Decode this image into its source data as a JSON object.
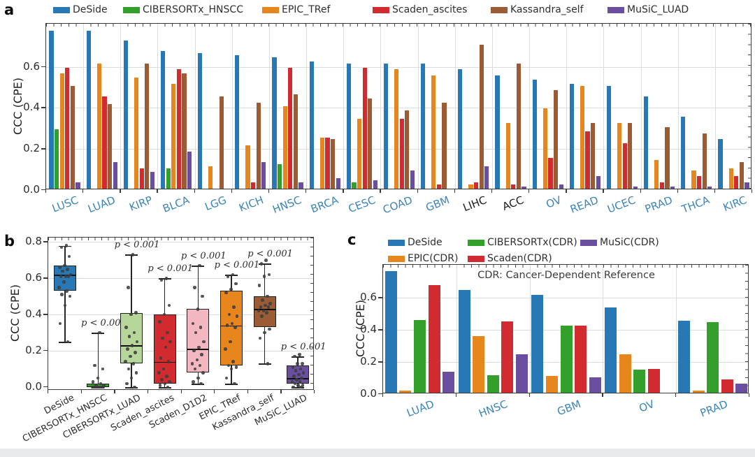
{
  "palette": {
    "blue": "#2878b5",
    "green": "#33a02c",
    "orange": "#e8861e",
    "red": "#d22b2f",
    "brown": "#9b5b35",
    "purple": "#6a4fa0",
    "pink": "#f3b7c1",
    "lightgreen": "#b7d79a",
    "axis": "#3a3a3a",
    "grid": "#dbdee1",
    "cancer_blue": "#3d85b8",
    "black_label": "#1c1c1c"
  },
  "chart_data": [
    {
      "panel": "a",
      "type": "bar",
      "ylabel": "CCC (CPE)",
      "yticks": [
        "0.0",
        "0.2",
        "0.4",
        "0.6"
      ],
      "ytick_values": [
        0,
        0.2,
        0.4,
        0.6
      ],
      "ylim": [
        0,
        0.81
      ],
      "legend": [
        {
          "label": "DeSide",
          "color_key": "blue"
        },
        {
          "label": "CIBERSORTx_HNSCC",
          "color_key": "green"
        },
        {
          "label": "EPIC_TRef",
          "color_key": "orange"
        },
        {
          "label": "Scaden_ascites",
          "color_key": "red"
        },
        {
          "label": "Kassandra_self",
          "color_key": "brown"
        },
        {
          "label": "MuSiC_LUAD",
          "color_key": "purple"
        }
      ],
      "categories": [
        "LUSC",
        "LUAD",
        "KIRP",
        "BLCA",
        "LGG",
        "KICH",
        "HNSC",
        "BRCA",
        "CESC",
        "COAD",
        "GBM",
        "LIHC",
        "ACC",
        "OV",
        "READ",
        "UCEC",
        "PRAD",
        "THCA",
        "KIRC"
      ],
      "black_categories": [
        "LIHC",
        "ACC"
      ],
      "series": [
        {
          "name": "DeSide",
          "color_key": "blue",
          "values": [
            0.77,
            0.77,
            0.72,
            0.67,
            0.66,
            0.65,
            0.64,
            0.62,
            0.61,
            0.61,
            0.61,
            0.58,
            0.55,
            0.53,
            0.51,
            0.5,
            0.45,
            0.35,
            0.24
          ]
        },
        {
          "name": "CIBERSORTx_HNSCC",
          "color_key": "green",
          "values": [
            0.29,
            0,
            0,
            0.1,
            0,
            0,
            0.12,
            0,
            0.03,
            0,
            0,
            0,
            0,
            0,
            0,
            0,
            0,
            0,
            0
          ]
        },
        {
          "name": "EPIC_TRef",
          "color_key": "orange",
          "values": [
            0.56,
            0.61,
            0.54,
            0.51,
            0.11,
            0.21,
            0.4,
            0.25,
            0.34,
            0.58,
            0.55,
            0.02,
            0.32,
            0.39,
            0.5,
            0.32,
            0.14,
            0.09,
            0.1
          ]
        },
        {
          "name": "Scaden_ascites",
          "color_key": "red",
          "values": [
            0.59,
            0.45,
            0.1,
            0.58,
            0,
            0.03,
            0.59,
            0.25,
            0.59,
            0.34,
            0.02,
            0.03,
            0.02,
            0.15,
            0.28,
            0.22,
            0.03,
            0.06,
            0.06
          ]
        },
        {
          "name": "Kassandra_self",
          "color_key": "brown",
          "values": [
            0.5,
            0.41,
            0.61,
            0.56,
            0.45,
            0.42,
            0.46,
            0.24,
            0.44,
            0.38,
            0.42,
            0.7,
            0.61,
            0.48,
            0.32,
            0.32,
            0.3,
            0.27,
            0.13
          ]
        },
        {
          "name": "MuSiC_LUAD",
          "color_key": "purple",
          "values": [
            0.03,
            0.13,
            0.08,
            0.18,
            0,
            0.13,
            0.03,
            0.05,
            0.04,
            0.09,
            0,
            0.11,
            0.01,
            0.02,
            0.06,
            0.01,
            0.01,
            0.01,
            0.03
          ]
        }
      ]
    },
    {
      "panel": "b",
      "type": "box",
      "ylabel": "CCC (CPE)",
      "yticks": [
        "0.0",
        "0.2",
        "0.4",
        "0.6",
        "0.8"
      ],
      "ytick_values": [
        0,
        0.2,
        0.4,
        0.6,
        0.8
      ],
      "ylim": [
        -0.02,
        0.82
      ],
      "significance_label": "p < 0.001",
      "boxes": [
        {
          "name": "DeSide",
          "color_key": "blue",
          "low": 0.25,
          "q1": 0.53,
          "median": 0.62,
          "q3": 0.67,
          "high": 0.78,
          "p": false,
          "points": [
            0.78,
            0.77,
            0.72,
            0.67,
            0.66,
            0.65,
            0.64,
            0.62,
            0.61,
            0.61,
            0.61,
            0.58,
            0.55,
            0.53,
            0.51,
            0.5,
            0.45,
            0.35,
            0.25
          ]
        },
        {
          "name": "CIBERSORTx_HNSCC",
          "color_key": "green",
          "low": 0.0,
          "q1": 0.0,
          "median": 0.005,
          "q3": 0.02,
          "high": 0.3,
          "p": true,
          "points": [
            0.3,
            0.12,
            0.1,
            0.05,
            0.03,
            0.02,
            0.01,
            0.01,
            0,
            0,
            0,
            0,
            0,
            0,
            0,
            0,
            0,
            0,
            0
          ]
        },
        {
          "name": "CIBERSORTx_LUAD",
          "color_key": "lightgreen",
          "low": 0.0,
          "q1": 0.13,
          "median": 0.23,
          "q3": 0.41,
          "high": 0.73,
          "p": true,
          "points": [
            0.73,
            0.55,
            0.41,
            0.4,
            0.33,
            0.3,
            0.28,
            0.25,
            0.23,
            0.21,
            0.19,
            0.17,
            0.14,
            0.13,
            0.1,
            0.08,
            0.05,
            0.02,
            0
          ]
        },
        {
          "name": "Scaden_ascites",
          "color_key": "red",
          "low": 0.0,
          "q1": 0.02,
          "median": 0.14,
          "q3": 0.4,
          "high": 0.6,
          "p": true,
          "points": [
            0.6,
            0.59,
            0.45,
            0.4,
            0.36,
            0.3,
            0.27,
            0.25,
            0.22,
            0.16,
            0.14,
            0.1,
            0.08,
            0.06,
            0.04,
            0.03,
            0.02,
            0.01,
            0
          ]
        },
        {
          "name": "Scaden_D1D2",
          "color_key": "pink",
          "low": 0.02,
          "q1": 0.08,
          "median": 0.21,
          "q3": 0.43,
          "high": 0.67,
          "p": true,
          "points": [
            0.67,
            0.55,
            0.5,
            0.43,
            0.35,
            0.33,
            0.3,
            0.25,
            0.22,
            0.2,
            0.18,
            0.15,
            0.13,
            0.12,
            0.1,
            0.08,
            0.05,
            0.03,
            0.02
          ]
        },
        {
          "name": "EPIC_TRef",
          "color_key": "orange",
          "low": 0.02,
          "q1": 0.12,
          "median": 0.34,
          "q3": 0.53,
          "high": 0.62,
          "p": true,
          "points": [
            0.62,
            0.61,
            0.57,
            0.54,
            0.52,
            0.44,
            0.4,
            0.39,
            0.35,
            0.34,
            0.33,
            0.25,
            0.21,
            0.14,
            0.12,
            0.11,
            0.1,
            0.05,
            0.02
          ]
        },
        {
          "name": "Kassandra_self",
          "color_key": "brown",
          "low": 0.13,
          "q1": 0.33,
          "median": 0.43,
          "q3": 0.5,
          "high": 0.68,
          "p": true,
          "points": [
            0.7,
            0.68,
            0.62,
            0.61,
            0.56,
            0.5,
            0.48,
            0.46,
            0.45,
            0.44,
            0.44,
            0.42,
            0.42,
            0.41,
            0.39,
            0.32,
            0.3,
            0.27,
            0.13
          ]
        },
        {
          "name": "MuSiC_LUAD",
          "color_key": "purple",
          "low": 0.0,
          "q1": 0.02,
          "median": 0.05,
          "q3": 0.12,
          "high": 0.17,
          "p": true,
          "points": [
            0.18,
            0.17,
            0.13,
            0.13,
            0.11,
            0.1,
            0.09,
            0.08,
            0.07,
            0.06,
            0.05,
            0.04,
            0.03,
            0.03,
            0.02,
            0.01,
            0.01,
            0,
            0
          ]
        }
      ]
    },
    {
      "panel": "c",
      "type": "bar",
      "ylabel": "CCC (CPE)",
      "yticks": [
        "0.0",
        "0.2",
        "0.4",
        "0.6"
      ],
      "ytick_values": [
        0,
        0.2,
        0.4,
        0.6
      ],
      "ylim": [
        0,
        0.81
      ],
      "annotation": "CDR: Cancer-Dependent Reference",
      "legend_rows": [
        [
          {
            "label": "DeSide",
            "color_key": "blue"
          },
          {
            "label": "CIBERSORTx(CDR)",
            "color_key": "green"
          },
          {
            "label": "MuSiC(CDR)",
            "color_key": "purple"
          }
        ],
        [
          {
            "label": "EPIC(CDR)",
            "color_key": "orange"
          },
          {
            "label": "Scaden(CDR)",
            "color_key": "red"
          }
        ]
      ],
      "categories": [
        "LUAD",
        "HNSC",
        "GBM",
        "OV",
        "PRAD"
      ],
      "series": [
        {
          "name": "DeSide",
          "color_key": "blue",
          "values": [
            0.76,
            0.64,
            0.61,
            0.53,
            0.45
          ]
        },
        {
          "name": "EPIC(CDR)",
          "color_key": "orange",
          "values": [
            0.015,
            0.355,
            0.105,
            0.24,
            0.015
          ]
        },
        {
          "name": "CIBERSORTx(CDR)",
          "color_key": "green",
          "values": [
            0.455,
            0.11,
            0.42,
            0.145,
            0.44
          ]
        },
        {
          "name": "Scaden(CDR)",
          "color_key": "red",
          "values": [
            0.67,
            0.445,
            0.42,
            0.15,
            0.085
          ]
        },
        {
          "name": "MuSiC(CDR)",
          "color_key": "purple",
          "values": [
            0.13,
            0.24,
            0.095,
            0,
            0.055
          ]
        }
      ]
    }
  ]
}
